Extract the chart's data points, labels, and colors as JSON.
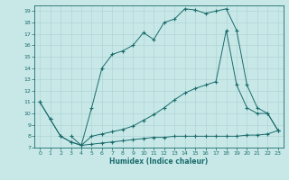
{
  "xlabel": "Humidex (Indice chaleur)",
  "bg_color": "#c8e8e8",
  "line_color": "#1a6b6b",
  "grid_color": "#b0d4d4",
  "xlim": [
    -0.5,
    23.5
  ],
  "ylim": [
    7,
    19.5
  ],
  "xticks": [
    0,
    1,
    2,
    3,
    4,
    5,
    6,
    7,
    8,
    9,
    10,
    11,
    12,
    13,
    14,
    15,
    16,
    17,
    18,
    19,
    20,
    21,
    22,
    23
  ],
  "yticks": [
    7,
    8,
    9,
    10,
    11,
    12,
    13,
    14,
    15,
    16,
    17,
    18,
    19
  ],
  "upper_x": [
    0,
    1,
    2,
    3,
    4,
    5,
    6,
    7,
    8,
    9,
    10,
    11,
    12,
    13,
    14,
    15,
    16,
    17,
    18,
    19,
    20,
    21,
    22,
    23
  ],
  "upper_y": [
    11,
    9.5,
    8.0,
    7.5,
    7.2,
    10.5,
    14.0,
    15.2,
    15.5,
    16.0,
    17.1,
    16.5,
    18.0,
    18.3,
    19.2,
    19.1,
    18.8,
    19.0,
    19.2,
    17.3,
    12.5,
    10.5,
    10.0,
    8.5
  ],
  "mid_x": [
    0,
    1,
    2,
    3,
    4,
    5,
    6,
    7,
    8,
    9,
    10,
    11,
    12,
    13,
    14,
    15,
    16,
    17,
    18,
    19,
    20,
    21,
    22,
    23
  ],
  "mid_y": [
    11,
    9.5,
    8.0,
    7.5,
    7.2,
    8.0,
    8.2,
    8.4,
    8.6,
    8.9,
    9.4,
    9.9,
    10.5,
    11.2,
    11.8,
    12.2,
    12.5,
    12.8,
    17.3,
    12.5,
    10.5,
    10.0,
    10.0,
    8.5
  ],
  "bot_x": [
    3,
    4,
    5,
    6,
    7,
    8,
    9,
    10,
    11,
    12,
    13,
    14,
    15,
    16,
    17,
    18,
    19,
    20,
    21,
    22,
    23
  ],
  "bot_y": [
    8.0,
    7.2,
    7.3,
    7.4,
    7.5,
    7.6,
    7.7,
    7.8,
    7.9,
    7.9,
    8.0,
    8.0,
    8.0,
    8.0,
    8.0,
    8.0,
    8.0,
    8.1,
    8.1,
    8.2,
    8.5
  ]
}
